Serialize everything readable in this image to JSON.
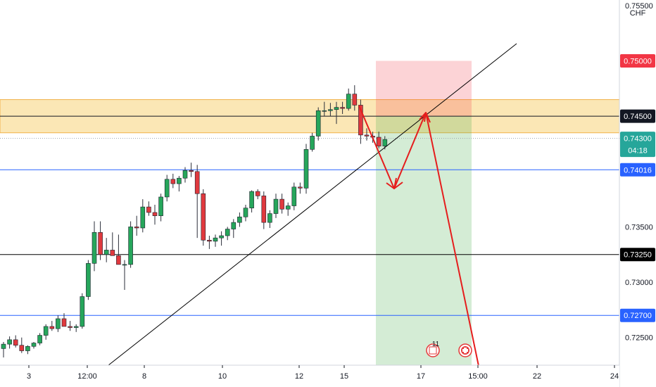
{
  "chart_data": {
    "type": "candlestick",
    "currency": "CHF",
    "y_axis": {
      "ylim": [
        0.7225,
        0.7555
      ],
      "ticks": [
        "0.75500",
        "0.75000",
        "0.74500",
        "0.74300",
        "0.73500",
        "0.73000",
        "0.72500"
      ]
    },
    "x_axis": {
      "labels": [
        "3",
        "12:00",
        "8",
        "10",
        "12",
        "15",
        "17",
        "15:00",
        "22",
        "24"
      ]
    },
    "price_lines": [
      {
        "label": "0.75000",
        "value": 0.75,
        "color": "#f23645",
        "line": false
      },
      {
        "label": "0.74500",
        "value": 0.745,
        "color": "#131722",
        "line": true
      },
      {
        "label": "0.74300",
        "value": 0.743,
        "color": "#26a69a",
        "line": false,
        "sub": "04:18"
      },
      {
        "label": "0.74016",
        "value": 0.74016,
        "color": "#2962ff",
        "line": true
      },
      {
        "label": "0.73250",
        "value": 0.7325,
        "color": "#000000",
        "line": true
      },
      {
        "label": "0.72700",
        "value": 0.727,
        "color": "#2962ff",
        "line": true
      }
    ],
    "zones": {
      "resistance": {
        "from": 0.7435,
        "to": 0.7465
      },
      "stop": {
        "from": 0.745,
        "to": 0.75
      },
      "target": {
        "from": 0.7225,
        "to": 0.745
      }
    },
    "candles": [
      [
        0.724,
        0.7246,
        0.7232,
        0.7244
      ],
      [
        0.7244,
        0.7251,
        0.724,
        0.7248
      ],
      [
        0.7248,
        0.7252,
        0.7241,
        0.7243
      ],
      [
        0.7243,
        0.725,
        0.7236,
        0.7238
      ],
      [
        0.7238,
        0.7243,
        0.7235,
        0.7242
      ],
      [
        0.7242,
        0.7246,
        0.724,
        0.7245
      ],
      [
        0.7245,
        0.7254,
        0.7243,
        0.7252
      ],
      [
        0.7252,
        0.7262,
        0.7248,
        0.726
      ],
      [
        0.726,
        0.7265,
        0.7256,
        0.7258
      ],
      [
        0.7258,
        0.727,
        0.7255,
        0.7267
      ],
      [
        0.7267,
        0.7272,
        0.7262,
        0.726
      ],
      [
        0.726,
        0.7265,
        0.7256,
        0.7259
      ],
      [
        0.7259,
        0.7262,
        0.7255,
        0.726
      ],
      [
        0.726,
        0.729,
        0.7258,
        0.7287
      ],
      [
        0.7287,
        0.732,
        0.7284,
        0.7317
      ],
      [
        0.7317,
        0.7355,
        0.731,
        0.7345
      ],
      [
        0.7345,
        0.7355,
        0.732,
        0.7325
      ],
      [
        0.7325,
        0.734,
        0.7318,
        0.7329
      ],
      [
        0.7329,
        0.7345,
        0.7325,
        0.7324
      ],
      [
        0.7324,
        0.7343,
        0.7318,
        0.7316
      ],
      [
        0.7316,
        0.732,
        0.7293,
        0.7316
      ],
      [
        0.7316,
        0.7355,
        0.7313,
        0.735
      ],
      [
        0.735,
        0.736,
        0.7342,
        0.7349
      ],
      [
        0.7349,
        0.7375,
        0.7345,
        0.7368
      ],
      [
        0.7368,
        0.7373,
        0.736,
        0.7363
      ],
      [
        0.7363,
        0.737,
        0.7352,
        0.736
      ],
      [
        0.736,
        0.738,
        0.7355,
        0.7377
      ],
      [
        0.7377,
        0.7397,
        0.7373,
        0.7393
      ],
      [
        0.7393,
        0.7398,
        0.7385,
        0.7389
      ],
      [
        0.7389,
        0.7396,
        0.7382,
        0.7394
      ],
      [
        0.7394,
        0.7404,
        0.739,
        0.7401
      ],
      [
        0.7401,
        0.7408,
        0.7395,
        0.74
      ],
      [
        0.74,
        0.7406,
        0.734,
        0.738
      ],
      [
        0.738,
        0.7384,
        0.7333,
        0.7338
      ],
      [
        0.7338,
        0.7342,
        0.733,
        0.7337
      ],
      [
        0.7337,
        0.7343,
        0.7332,
        0.734
      ],
      [
        0.734,
        0.7346,
        0.7333,
        0.7342
      ],
      [
        0.7342,
        0.735,
        0.7338,
        0.7348
      ],
      [
        0.7348,
        0.7357,
        0.734,
        0.7354
      ],
      [
        0.7354,
        0.7363,
        0.735,
        0.7359
      ],
      [
        0.7359,
        0.737,
        0.7355,
        0.7367
      ],
      [
        0.7367,
        0.7383,
        0.7363,
        0.7382
      ],
      [
        0.7382,
        0.7384,
        0.7375,
        0.7378
      ],
      [
        0.7378,
        0.7382,
        0.7348,
        0.7354
      ],
      [
        0.7354,
        0.7365,
        0.7349,
        0.7362
      ],
      [
        0.7362,
        0.738,
        0.7358,
        0.7375
      ],
      [
        0.7375,
        0.738,
        0.7362,
        0.7366
      ],
      [
        0.7366,
        0.7372,
        0.736,
        0.7369
      ],
      [
        0.7369,
        0.739,
        0.7365,
        0.7386
      ],
      [
        0.7386,
        0.739,
        0.738,
        0.7385
      ],
      [
        0.7385,
        0.7425,
        0.738,
        0.742
      ],
      [
        0.742,
        0.7435,
        0.7418,
        0.7432
      ],
      [
        0.7432,
        0.7458,
        0.7428,
        0.7455
      ],
      [
        0.7455,
        0.7463,
        0.745,
        0.7455
      ],
      [
        0.7455,
        0.7462,
        0.745,
        0.7456
      ],
      [
        0.7456,
        0.7463,
        0.7443,
        0.7458
      ],
      [
        0.7458,
        0.7463,
        0.7452,
        0.7457
      ],
      [
        0.7457,
        0.7475,
        0.7455,
        0.747
      ],
      [
        0.747,
        0.7478,
        0.7455,
        0.746
      ],
      [
        0.746,
        0.7465,
        0.7425,
        0.7433
      ],
      [
        0.7433,
        0.7439,
        0.7428,
        0.7432
      ],
      [
        0.7432,
        0.7436,
        0.7426,
        0.7431
      ],
      [
        0.7431,
        0.7436,
        0.7421,
        0.7423
      ],
      [
        0.7423,
        0.7432,
        0.742,
        0.7429
      ]
    ],
    "annotations": {
      "trendline": [
        [
          149,
          523
        ],
        [
          734,
          62
        ]
      ],
      "projection_arrow": [
        [
          510,
          150
        ],
        [
          560,
          268
        ],
        [
          605,
          160
        ],
        [
          680,
          520
        ]
      ],
      "event_badge": "11"
    }
  }
}
